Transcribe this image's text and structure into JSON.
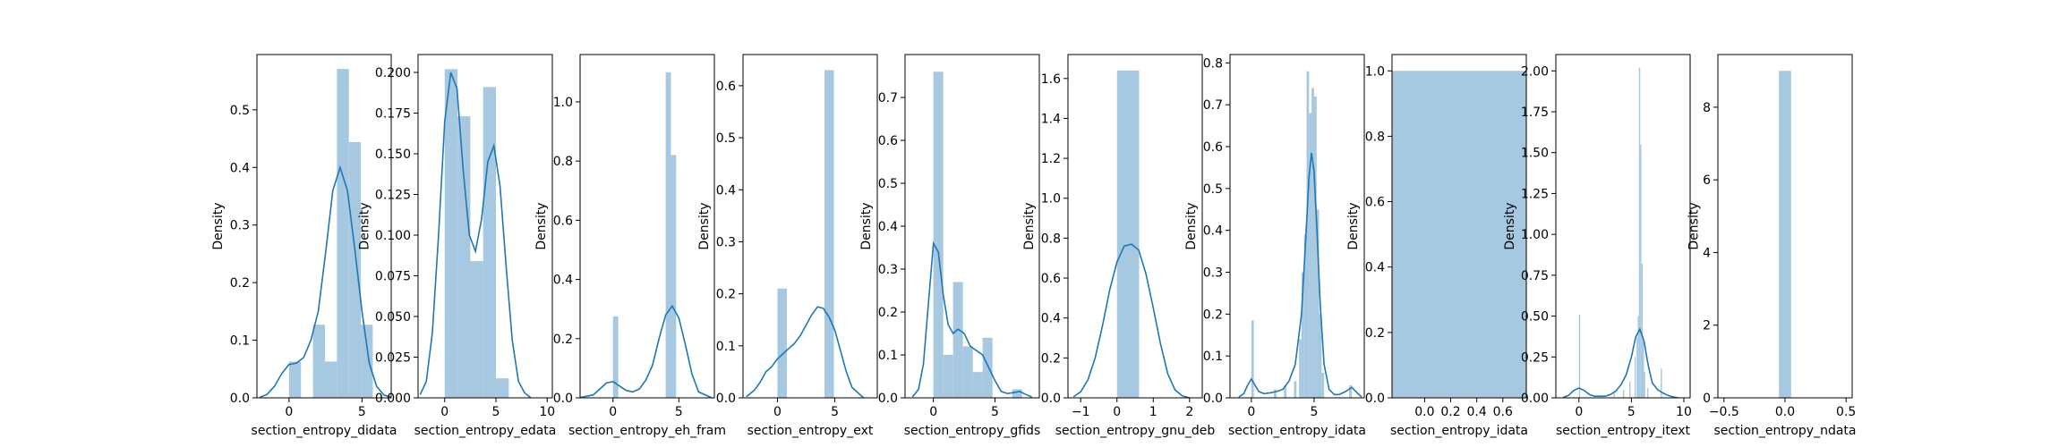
{
  "chart_data": [
    {
      "type": "histogram+kde",
      "xlabel": "section_entropy_didata",
      "ylabel": "Density",
      "xlim": [
        -2.2,
        7.0
      ],
      "ylim": [
        0,
        0.596
      ],
      "xticks": [
        0,
        5
      ],
      "yticks": [
        0.0,
        0.1,
        0.2,
        0.3,
        0.4,
        0.5
      ],
      "ytick_labels": [
        "0.0",
        "0.1",
        "0.2",
        "0.3",
        "0.4",
        "0.5"
      ],
      "bars": [
        {
          "x0": 0.0,
          "x1": 0.82,
          "density": 0.063
        },
        {
          "x0": 0.82,
          "x1": 1.64,
          "density": 0.0
        },
        {
          "x0": 1.64,
          "x1": 2.46,
          "density": 0.127
        },
        {
          "x0": 2.46,
          "x1": 3.28,
          "density": 0.063
        },
        {
          "x0": 3.28,
          "x1": 4.1,
          "density": 0.571
        },
        {
          "x0": 4.1,
          "x1": 4.92,
          "density": 0.444
        },
        {
          "x0": 4.92,
          "x1": 5.74,
          "density": 0.127
        }
      ],
      "kde": {
        "x": [
          -2.0,
          -1.5,
          -1.0,
          -0.5,
          0.0,
          0.5,
          1.0,
          1.5,
          2.0,
          2.5,
          3.0,
          3.5,
          4.0,
          4.5,
          5.0,
          5.5,
          6.0,
          6.5,
          7.0
        ],
        "y": [
          0.001,
          0.006,
          0.02,
          0.042,
          0.058,
          0.06,
          0.07,
          0.1,
          0.15,
          0.25,
          0.36,
          0.4,
          0.36,
          0.26,
          0.15,
          0.06,
          0.02,
          0.005,
          0.001
        ]
      }
    },
    {
      "type": "histogram+kde",
      "xlabel": "section_entropy_edata",
      "ylabel": "Density",
      "xlim": [
        -2.6,
        10.5
      ],
      "ylim": [
        0,
        0.211
      ],
      "xticks": [
        0,
        5,
        10
      ],
      "yticks": [
        0.0,
        0.025,
        0.05,
        0.075,
        0.1,
        0.125,
        0.15,
        0.175,
        0.2
      ],
      "ytick_labels": [
        "0.000",
        "0.025",
        "0.050",
        "0.075",
        "0.100",
        "0.125",
        "0.150",
        "0.175",
        "0.200"
      ],
      "bars": [
        {
          "x0": 0.0,
          "x1": 1.25,
          "density": 0.202
        },
        {
          "x0": 1.25,
          "x1": 2.5,
          "density": 0.173
        },
        {
          "x0": 2.5,
          "x1": 3.75,
          "density": 0.084
        },
        {
          "x0": 3.75,
          "x1": 5.0,
          "density": 0.191
        },
        {
          "x0": 5.0,
          "x1": 6.25,
          "density": 0.012
        }
      ],
      "kde": {
        "x": [
          -2.4,
          -1.8,
          -1.2,
          -0.6,
          0.0,
          0.6,
          1.2,
          1.8,
          2.4,
          3.0,
          3.6,
          4.2,
          4.8,
          5.4,
          6.0,
          6.6,
          7.2,
          7.8,
          8.4
        ],
        "y": [
          0.002,
          0.01,
          0.04,
          0.1,
          0.17,
          0.2,
          0.19,
          0.14,
          0.1,
          0.09,
          0.11,
          0.145,
          0.155,
          0.13,
          0.08,
          0.035,
          0.01,
          0.003,
          0.0
        ]
      }
    },
    {
      "type": "histogram+kde",
      "xlabel": "section_entropy_eh_fram",
      "ylabel": "Density",
      "xlim": [
        -2.5,
        7.7
      ],
      "ylim": [
        0,
        1.16
      ],
      "xticks": [
        0,
        5
      ],
      "yticks": [
        0.0,
        0.2,
        0.4,
        0.6,
        0.8,
        1.0
      ],
      "ytick_labels": [
        "0.0",
        "0.2",
        "0.4",
        "0.6",
        "0.8",
        "1.0"
      ],
      "bars": [
        {
          "x0": 0.0,
          "x1": 0.4,
          "density": 0.275
        },
        {
          "x0": 4.0,
          "x1": 4.4,
          "density": 1.1
        },
        {
          "x0": 4.4,
          "x1": 4.8,
          "density": 0.82
        }
      ],
      "kde": {
        "x": [
          -2.5,
          -1.5,
          -1.0,
          -0.5,
          0.0,
          0.5,
          1.0,
          1.5,
          2.0,
          2.5,
          3.0,
          3.5,
          4.0,
          4.5,
          5.0,
          5.5,
          6.0,
          6.5,
          7.5
        ],
        "y": [
          0.001,
          0.01,
          0.03,
          0.05,
          0.055,
          0.04,
          0.025,
          0.02,
          0.03,
          0.06,
          0.11,
          0.2,
          0.28,
          0.31,
          0.27,
          0.18,
          0.08,
          0.02,
          0.0
        ]
      }
    },
    {
      "type": "histogram+kde",
      "xlabel": "section_entropy_ext",
      "ylabel": "Density",
      "xlim": [
        -3.0,
        8.7
      ],
      "ylim": [
        0,
        0.66
      ],
      "xticks": [
        0,
        5
      ],
      "yticks": [
        0.0,
        0.1,
        0.2,
        0.3,
        0.4,
        0.5,
        0.6
      ],
      "ytick_labels": [
        "0.0",
        "0.1",
        "0.2",
        "0.3",
        "0.4",
        "0.5",
        "0.6"
      ],
      "bars": [
        {
          "x0": 0.0,
          "x1": 0.82,
          "density": 0.21
        },
        {
          "x0": 4.1,
          "x1": 4.92,
          "density": 0.63
        }
      ],
      "kde": {
        "x": [
          -2.7,
          -2.0,
          -1.5,
          -1.0,
          -0.5,
          0.0,
          0.5,
          1.0,
          1.5,
          2.0,
          2.5,
          3.0,
          3.5,
          4.0,
          4.5,
          5.0,
          5.5,
          6.0,
          6.5,
          7.5
        ],
        "y": [
          0.002,
          0.015,
          0.03,
          0.05,
          0.06,
          0.075,
          0.085,
          0.095,
          0.105,
          0.12,
          0.14,
          0.16,
          0.175,
          0.172,
          0.155,
          0.13,
          0.09,
          0.05,
          0.02,
          0.0
        ]
      }
    },
    {
      "type": "histogram+kde",
      "xlabel": "section_entropy_gfids",
      "ylabel": "Density",
      "xlim": [
        -2.3,
        8.6
      ],
      "ylim": [
        0,
        0.8
      ],
      "xticks": [
        0,
        5
      ],
      "yticks": [
        0.0,
        0.1,
        0.2,
        0.3,
        0.4,
        0.5,
        0.6,
        0.7
      ],
      "ytick_labels": [
        "0.0",
        "0.1",
        "0.2",
        "0.3",
        "0.4",
        "0.5",
        "0.6",
        "0.7"
      ],
      "bars": [
        {
          "x0": 0.0,
          "x1": 0.8,
          "density": 0.76
        },
        {
          "x0": 0.8,
          "x1": 1.6,
          "density": 0.1
        },
        {
          "x0": 1.6,
          "x1": 2.4,
          "density": 0.27
        },
        {
          "x0": 2.4,
          "x1": 3.2,
          "density": 0.12
        },
        {
          "x0": 3.2,
          "x1": 4.0,
          "density": 0.06
        },
        {
          "x0": 4.0,
          "x1": 4.8,
          "density": 0.14
        },
        {
          "x0": 4.8,
          "x1": 5.6,
          "density": 0.0
        },
        {
          "x0": 5.6,
          "x1": 6.4,
          "density": 0.0
        },
        {
          "x0": 6.4,
          "x1": 7.2,
          "density": 0.02
        }
      ],
      "kde": {
        "x": [
          -1.7,
          -1.2,
          -0.8,
          -0.4,
          0.0,
          0.4,
          0.8,
          1.2,
          1.6,
          2.0,
          2.5,
          3.0,
          3.5,
          4.0,
          4.5,
          5.0,
          5.5,
          6.0,
          6.5,
          7.0,
          7.5,
          8.0
        ],
        "y": [
          0.002,
          0.02,
          0.08,
          0.22,
          0.36,
          0.34,
          0.24,
          0.17,
          0.15,
          0.16,
          0.15,
          0.12,
          0.11,
          0.1,
          0.07,
          0.04,
          0.015,
          0.01,
          0.012,
          0.015,
          0.008,
          0.002
        ]
      }
    },
    {
      "type": "histogram+kde",
      "xlabel": "section_entropy_gnu_deb",
      "ylabel": "Density",
      "xlim": [
        -1.35,
        2.35
      ],
      "ylim": [
        0,
        1.72
      ],
      "xticks": [
        -1,
        0,
        1,
        2
      ],
      "yticks": [
        0.0,
        0.2,
        0.4,
        0.6,
        0.8,
        1.0,
        1.2,
        1.4,
        1.6
      ],
      "ytick_labels": [
        "0.0",
        "0.2",
        "0.4",
        "0.6",
        "0.8",
        "1.0",
        "1.2",
        "1.4",
        "1.6"
      ],
      "bars": [
        {
          "x0": 0.0,
          "x1": 0.61,
          "density": 1.64
        }
      ],
      "kde": {
        "x": [
          -1.2,
          -1.0,
          -0.8,
          -0.6,
          -0.4,
          -0.2,
          0.0,
          0.2,
          0.4,
          0.6,
          0.8,
          1.0,
          1.2,
          1.4,
          1.6,
          1.8,
          2.0
        ],
        "y": [
          0.005,
          0.03,
          0.09,
          0.2,
          0.36,
          0.54,
          0.68,
          0.76,
          0.77,
          0.74,
          0.62,
          0.45,
          0.27,
          0.12,
          0.04,
          0.01,
          0.0
        ]
      }
    },
    {
      "type": "histogram+kde",
      "xlabel": "section_entropy_idata",
      "ylabel": "Density",
      "xlim": [
        -1.7,
        9.0
      ],
      "ylim": [
        0,
        0.82
      ],
      "xticks": [
        0,
        5
      ],
      "yticks": [
        0.0,
        0.1,
        0.2,
        0.3,
        0.4,
        0.5,
        0.6,
        0.7,
        0.8
      ],
      "ytick_labels": [
        "0.0",
        "0.1",
        "0.2",
        "0.3",
        "0.4",
        "0.5",
        "0.6",
        "0.7",
        "0.8"
      ],
      "bars": [
        {
          "x0": 0.0,
          "x1": 0.2,
          "density": 0.185
        },
        {
          "x0": 1.8,
          "x1": 2.0,
          "density": 0.02
        },
        {
          "x0": 2.6,
          "x1": 2.8,
          "density": 0.03
        },
        {
          "x0": 3.4,
          "x1": 3.6,
          "density": 0.04
        },
        {
          "x0": 3.8,
          "x1": 4.0,
          "density": 0.14
        },
        {
          "x0": 4.0,
          "x1": 4.2,
          "density": 0.3
        },
        {
          "x0": 4.2,
          "x1": 4.4,
          "density": 0.39
        },
        {
          "x0": 4.4,
          "x1": 4.6,
          "density": 0.78
        },
        {
          "x0": 4.6,
          "x1": 4.8,
          "density": 0.68
        },
        {
          "x0": 4.8,
          "x1": 5.0,
          "density": 0.74
        },
        {
          "x0": 5.0,
          "x1": 5.2,
          "density": 0.72
        },
        {
          "x0": 5.2,
          "x1": 5.4,
          "density": 0.45
        },
        {
          "x0": 5.4,
          "x1": 5.6,
          "density": 0.2
        },
        {
          "x0": 5.6,
          "x1": 5.8,
          "density": 0.06
        },
        {
          "x0": 7.8,
          "x1": 8.0,
          "density": 0.03
        }
      ],
      "kde": {
        "x": [
          -1.0,
          -0.6,
          -0.3,
          0.0,
          0.3,
          0.6,
          1.0,
          1.5,
          2.0,
          2.5,
          3.0,
          3.5,
          4.0,
          4.3,
          4.6,
          4.8,
          5.0,
          5.2,
          5.5,
          5.8,
          6.2,
          6.6,
          7.0,
          7.5,
          8.0,
          8.5,
          8.8
        ],
        "y": [
          0.002,
          0.01,
          0.03,
          0.045,
          0.03,
          0.015,
          0.01,
          0.012,
          0.015,
          0.02,
          0.04,
          0.08,
          0.2,
          0.36,
          0.53,
          0.585,
          0.54,
          0.42,
          0.22,
          0.08,
          0.02,
          0.008,
          0.008,
          0.015,
          0.025,
          0.01,
          0.002
        ]
      }
    },
    {
      "type": "histogram",
      "xlabel": "section_entropy_idata",
      "ylabel": "Density",
      "xlim": [
        -0.25,
        0.78
      ],
      "ylim": [
        0,
        1.05
      ],
      "xticks": [
        0.0,
        0.2,
        0.4,
        0.6
      ],
      "xtick_labels": [
        "0.0",
        "0.2",
        "0.4",
        "0.6"
      ],
      "yticks": [
        0.0,
        0.2,
        0.4,
        0.6,
        0.8,
        1.0
      ],
      "ytick_labels": [
        "0.0",
        "0.2",
        "0.4",
        "0.6",
        "0.8",
        "1.0"
      ],
      "bars": [
        {
          "x0": -0.25,
          "x1": 0.78,
          "density": 1.0
        }
      ]
    },
    {
      "type": "histogram+kde",
      "xlabel": "section_entropy_itext",
      "ylabel": "Density",
      "xlim": [
        -2.2,
        10.6
      ],
      "ylim": [
        0,
        2.1
      ],
      "xticks": [
        0,
        5,
        10
      ],
      "yticks": [
        0.0,
        0.25,
        0.5,
        0.75,
        1.0,
        1.25,
        1.5,
        1.75,
        2.0
      ],
      "ytick_labels": [
        "0.00",
        "0.25",
        "0.50",
        "0.75",
        "1.00",
        "1.25",
        "1.50",
        "1.75",
        "2.00"
      ],
      "bars": [
        {
          "x0": 0.0,
          "x1": 0.12,
          "density": 0.51
        },
        {
          "x0": 3.3,
          "x1": 3.42,
          "density": 0.03
        },
        {
          "x0": 4.2,
          "x1": 4.32,
          "density": 0.05
        },
        {
          "x0": 4.8,
          "x1": 4.92,
          "density": 0.1
        },
        {
          "x0": 5.3,
          "x1": 5.42,
          "density": 0.25
        },
        {
          "x0": 5.5,
          "x1": 5.62,
          "density": 0.37
        },
        {
          "x0": 5.6,
          "x1": 5.72,
          "density": 0.5
        },
        {
          "x0": 5.72,
          "x1": 5.84,
          "density": 2.02
        },
        {
          "x0": 5.84,
          "x1": 5.96,
          "density": 1.55
        },
        {
          "x0": 5.96,
          "x1": 6.08,
          "density": 0.82
        },
        {
          "x0": 6.08,
          "x1": 6.2,
          "density": 0.35
        },
        {
          "x0": 6.2,
          "x1": 6.32,
          "density": 0.16
        },
        {
          "x0": 6.5,
          "x1": 6.62,
          "density": 0.06
        },
        {
          "x0": 7.8,
          "x1": 7.92,
          "density": 0.18
        }
      ],
      "kde": {
        "x": [
          -1.5,
          -1.0,
          -0.5,
          0.0,
          0.5,
          1.0,
          1.5,
          2.0,
          2.5,
          3.0,
          3.5,
          4.0,
          4.5,
          5.0,
          5.4,
          5.8,
          6.2,
          6.6,
          7.0,
          7.5,
          8.0,
          8.5,
          9.0,
          9.5
        ],
        "y": [
          0.002,
          0.015,
          0.045,
          0.06,
          0.045,
          0.02,
          0.01,
          0.01,
          0.01,
          0.02,
          0.04,
          0.08,
          0.14,
          0.25,
          0.37,
          0.42,
          0.35,
          0.2,
          0.09,
          0.05,
          0.03,
          0.015,
          0.005,
          0.0
        ]
      }
    },
    {
      "type": "histogram",
      "xlabel": "section_entropy_ndata",
      "ylabel": "Density",
      "xlim": [
        -0.55,
        0.55
      ],
      "ylim": [
        0,
        9.45
      ],
      "xticks": [
        -0.5,
        0.0,
        0.5
      ],
      "xtick_labels": [
        "−0.5",
        "0.0",
        "0.5"
      ],
      "yticks": [
        0,
        2,
        4,
        6,
        8
      ],
      "ytick_labels": [
        "0",
        "2",
        "4",
        "6",
        "8"
      ],
      "bars": [
        {
          "x0": -0.05,
          "x1": 0.05,
          "density": 9.0
        }
      ]
    }
  ]
}
